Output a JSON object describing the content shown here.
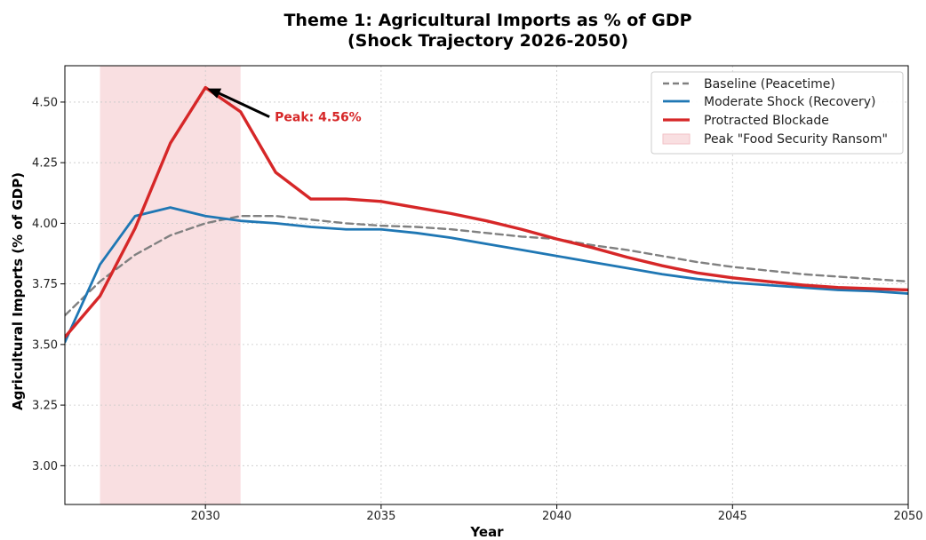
{
  "chart_data": {
    "type": "line",
    "title_lines": [
      "Theme 1: Agricultural Imports as % of GDP",
      "(Shock Trajectory 2026-2050)"
    ],
    "xlabel": "Year",
    "ylabel": "Agricultural Imports (% of GDP)",
    "xlim": [
      2026,
      2050
    ],
    "ylim": [
      2.84,
      4.65
    ],
    "xticks": [
      2030,
      2035,
      2040,
      2045,
      2050
    ],
    "yticks": [
      3.0,
      3.25,
      3.5,
      3.75,
      4.0,
      4.25,
      4.5
    ],
    "grid": true,
    "legend_position": "top-right",
    "shaded_region": {
      "name": "Peak \"Food Security Ransom\"",
      "x_start": 2027,
      "x_end": 2031,
      "color": "#f9dfe1"
    },
    "series": [
      {
        "name": "Baseline (Peacetime)",
        "style": "dashed",
        "color": "#808080",
        "x": [
          2026,
          2027,
          2028,
          2029,
          2030,
          2031,
          2032,
          2033,
          2034,
          2035,
          2036,
          2037,
          2038,
          2039,
          2040,
          2041,
          2042,
          2043,
          2044,
          2045,
          2046,
          2047,
          2048,
          2049,
          2050
        ],
        "y": [
          3.62,
          3.76,
          3.87,
          3.95,
          4.0,
          4.03,
          4.03,
          4.015,
          4.0,
          3.99,
          3.985,
          3.975,
          3.96,
          3.945,
          3.935,
          3.91,
          3.89,
          3.865,
          3.84,
          3.82,
          3.805,
          3.79,
          3.78,
          3.77,
          3.76
        ]
      },
      {
        "name": "Moderate Shock (Recovery)",
        "style": "solid",
        "color": "#1f77b4",
        "x": [
          2026,
          2027,
          2028,
          2029,
          2030,
          2031,
          2032,
          2033,
          2034,
          2035,
          2036,
          2037,
          2038,
          2039,
          2040,
          2041,
          2042,
          2043,
          2044,
          2045,
          2046,
          2047,
          2048,
          2049,
          2050
        ],
        "y": [
          3.51,
          3.83,
          4.03,
          4.065,
          4.03,
          4.01,
          4.0,
          3.985,
          3.975,
          3.975,
          3.96,
          3.94,
          3.915,
          3.89,
          3.865,
          3.84,
          3.815,
          3.79,
          3.77,
          3.755,
          3.745,
          3.735,
          3.725,
          3.72,
          3.71
        ]
      },
      {
        "name": "Protracted Blockade",
        "style": "solid",
        "color": "#d62728",
        "x": [
          2026,
          2027,
          2028,
          2029,
          2030,
          2031,
          2032,
          2033,
          2034,
          2035,
          2036,
          2037,
          2038,
          2039,
          2040,
          2041,
          2042,
          2043,
          2044,
          2045,
          2046,
          2047,
          2048,
          2049,
          2050
        ],
        "y": [
          3.53,
          3.7,
          3.98,
          4.33,
          4.56,
          4.46,
          4.21,
          4.1,
          4.1,
          4.09,
          4.065,
          4.04,
          4.01,
          3.975,
          3.935,
          3.9,
          3.86,
          3.825,
          3.795,
          3.775,
          3.76,
          3.745,
          3.735,
          3.73,
          3.725
        ]
      }
    ],
    "annotation": {
      "text": "Peak: 4.56%",
      "x": 2030,
      "y": 4.56,
      "color": "#d62728"
    }
  }
}
